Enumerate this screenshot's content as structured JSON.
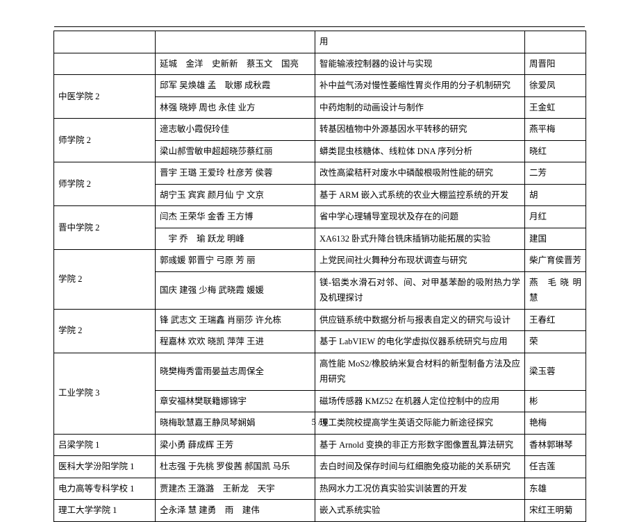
{
  "columns": {
    "c0_width": 146,
    "c1_width": 230,
    "c2_width": 302,
    "c3_width": 88
  },
  "rows": [
    {
      "c0": "",
      "c0_rowspan": 1,
      "c1": "",
      "c2": "用",
      "c3": ""
    },
    {
      "c0": "",
      "c0_rowspan": 1,
      "c1": "延城　金洋　史新新　蔡玉文　国亮",
      "c2": "智能输液控制器的设计与实现",
      "c3": "周晋阳"
    },
    {
      "c0": "中医学院 2",
      "c0_rowspan": 2,
      "c1": "邱军 吴焕雄 孟　耿娜 成秋霞",
      "c2": "补中益气汤对慢性萎缩性胃炎作用的分子机制研究",
      "c3": "徐爱凤"
    },
    {
      "c0": null,
      "c1": "林强 晓婷 周也 永佳 业方",
      "c2": "中药炮制的动画设计与制作",
      "c3": "王金虹"
    },
    {
      "c0": "师学院 2",
      "c0_rowspan": 2,
      "c1": "遆志敏小霞倪玲佳",
      "c2": "转基因植物中外源基因水平转移的研究",
      "c3": "燕平梅"
    },
    {
      "c0": null,
      "c1": "梁山郝雪敏申超超晓莎蔡红丽",
      "c2": "蟒类昆虫核糖体、线粒体 DNA 序列分析",
      "c3": "晓红"
    },
    {
      "c0": "师学院 2",
      "c0_rowspan": 2,
      "c1": "晋宇 王璐 王爱玲 杜彦芳 侯蓉",
      "c2": "改性高粱秸秆对废水中磷酸根吸附性能的研究",
      "c3": "二芳"
    },
    {
      "c0": null,
      "c1": "胡宁玉 宾宾 颜月仙 宁 文京",
      "c2": "基于 ARM 嵌入式系统的农业大棚监控系统的开发",
      "c3": "胡"
    },
    {
      "c0": "晋中学院 2",
      "c0_rowspan": 2,
      "c1": "闫杰 王荣华 金香 王方博",
      "c2": "省中学心理辅导室现状及存在的问题",
      "c3": "月红"
    },
    {
      "c0": null,
      "c1": "　宇 乔　瑜 跃龙 明峰",
      "c2": "XA6132 卧式升降台铣床插销功能拓展的实验",
      "c3": "建国"
    },
    {
      "c0": "学院 2",
      "c0_rowspan": 2,
      "c1": "郭彧媛 郭晋宁 弓原 芳 丽",
      "c2": "上党民间社火舞种分布现状调查与研究",
      "c3": "柴广育侯晋芳"
    },
    {
      "c0": null,
      "c1": "国庆 建强 少梅 武晓霞 媛媛",
      "c2": "镁-铝类水滑石对邻、间、对甲基苯酚的吸附热力学及机理探讨",
      "c3": "燕 毛晓明　慧"
    },
    {
      "c0": "学院 2",
      "c0_rowspan": 2,
      "c1": "锋 武志文 王瑞鑫 肖丽莎 许允栋",
      "c2": "供应链系统中数据分析与报表自定义的研究与设计",
      "c3": "王春红"
    },
    {
      "c0": null,
      "c1": "程嘉林 欢欢 晓凯 萍萍 王进",
      "c2": "基于 LabVIEW 的电化学虚拟仪器系统研究与应用",
      "c3": "荣"
    },
    {
      "c0": "工业学院 3",
      "c0_rowspan": 3,
      "c1": "晓樊梅秀雷雨晏益志周保全",
      "c2": "高性能 MoS2/橡胶纳米复合材料的新型制备方法及应用研究",
      "c3": "梁玉蓉"
    },
    {
      "c0": null,
      "c1": "章安福林樊联籍娜锦宇",
      "c2": "磁场传感器 KMZ52 在机器人定位控制中的应用",
      "c3": "彬"
    },
    {
      "c0": null,
      "c1": "晓梅耿慧嘉王静凤琴娴娟",
      "c2": "理工类院校提高学生英语交际能力新途径探究",
      "c3": "艳梅"
    },
    {
      "c0": "吕梁学院 1",
      "c0_rowspan": 1,
      "c1": "梁小勇 薛成辉 王芳",
      "c2": "基于 Arnold 变换的非正方形数字图像置乱算法研究",
      "c3": "香林郭琳琴"
    },
    {
      "c0": "医科大学汾阳学院 1",
      "c0_rowspan": 1,
      "c1": "杜志强 于先桃 罗俊茜 郝国凯 马乐",
      "c2": "去白时间及保存时间与红细胞免疫功能的关系研究",
      "c3": "任吉莲"
    },
    {
      "c0": "电力高等专科学校 1",
      "c0_rowspan": 1,
      "c1": "贾建杰 王潞潞　王新龙　天宇",
      "c2": "热网水力工况仿真实验实训装置的开发",
      "c3": "东雄"
    },
    {
      "c0": "理工大学学院 1",
      "c0_rowspan": 1,
      "c1": "仝永泽 慧 建勇　雨　建伟",
      "c2": "嵌入式系统实验",
      "c3": "宋红王明菊"
    }
  ],
  "footer": "5 / 6"
}
